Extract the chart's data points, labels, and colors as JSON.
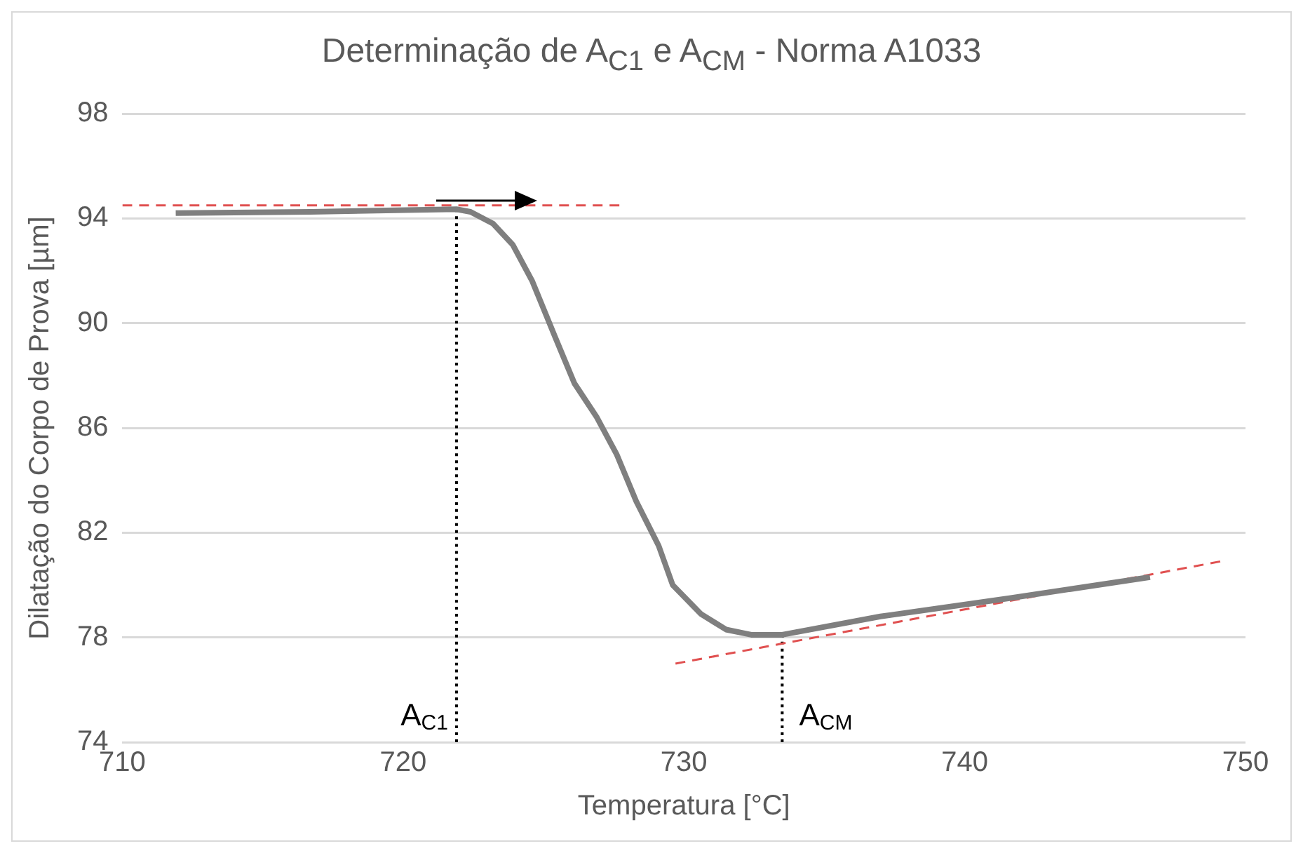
{
  "chart_data": {
    "type": "line",
    "title": "Determinação de A$_{C1}$ e A$_{CM}$ - Norma A1033",
    "xlabel": "Temperatura [°C]",
    "ylabel": "Dilatação do Corpo de Prova [µm]",
    "xlim": [
      710,
      750
    ],
    "xticks": [
      710,
      720,
      730,
      740,
      750
    ],
    "ylim": [
      74,
      98
    ],
    "yticks": [
      74,
      78,
      82,
      86,
      90,
      94,
      98
    ],
    "grid": "y",
    "legend": false,
    "marker": "none",
    "series": [
      {
        "color": "#7f7f7f",
        "line_style": "solid",
        "x": [
          711.9,
          716.7,
          721.9,
          722.4,
          723.2,
          723.9,
          724.6,
          725.4,
          726.1,
          726.9,
          727.6,
          728.3,
          729.1,
          729.6,
          730.6,
          731.5,
          732.4,
          733.5,
          737.0,
          741.6,
          746.6
        ],
        "values": [
          94.2,
          94.25,
          94.35,
          94.25,
          93.8,
          93.0,
          91.6,
          89.5,
          87.7,
          86.4,
          85.0,
          83.2,
          81.5,
          80.0,
          78.9,
          78.3,
          78.1,
          78.1,
          78.8,
          79.5,
          80.3
        ]
      },
      {
        "color": "#e05050",
        "line_style": "dashed",
        "x": [
          710,
          727.7
        ],
        "values": [
          94.5,
          94.5
        ]
      },
      {
        "color": "#e05050",
        "line_style": "dashed",
        "x": [
          729.7,
          749.1
        ],
        "values": [
          77.0,
          80.9
        ]
      },
      {
        "color": "#000000",
        "line_style": "dotted",
        "x": [
          721.9,
          721.9
        ],
        "values": [
          74,
          94.35
        ]
      },
      {
        "color": "#000000",
        "line_style": "dotted",
        "x": [
          733.5,
          733.5
        ],
        "values": [
          74,
          78.1
        ]
      }
    ],
    "annotations": [
      {
        "text": "A$_{C1}$",
        "x": 721.9,
        "y": 74
      },
      {
        "text": "A$_{CM}$",
        "x": 733.5,
        "y": 74
      }
    ]
  }
}
